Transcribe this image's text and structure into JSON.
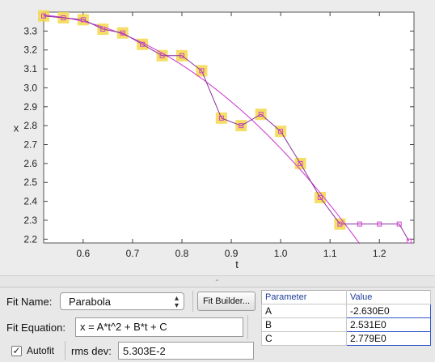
{
  "chart_data": {
    "type": "scatter",
    "xlabel": "t",
    "ylabel": "x",
    "xlim": [
      0.52,
      1.27
    ],
    "ylim": [
      2.18,
      3.4
    ],
    "x_ticks": [
      0.6,
      0.7,
      0.8,
      0.9,
      1.0,
      1.1,
      1.2
    ],
    "y_ticks": [
      2.2,
      2.3,
      2.4,
      2.5,
      2.6,
      2.7,
      2.8,
      2.9,
      3.0,
      3.1,
      3.2,
      3.3
    ],
    "grid": false,
    "series": [
      {
        "points": [
          {
            "t": 0.52,
            "x": 3.38,
            "highlighted": true
          },
          {
            "t": 0.56,
            "x": 3.37,
            "highlighted": true
          },
          {
            "t": 0.6,
            "x": 3.36,
            "highlighted": true
          },
          {
            "t": 0.64,
            "x": 3.31,
            "highlighted": true
          },
          {
            "t": 0.68,
            "x": 3.29,
            "highlighted": true
          },
          {
            "t": 0.72,
            "x": 3.23,
            "highlighted": true
          },
          {
            "t": 0.76,
            "x": 3.17,
            "highlighted": true
          },
          {
            "t": 0.8,
            "x": 3.17,
            "highlighted": true
          },
          {
            "t": 0.84,
            "x": 3.09,
            "highlighted": true
          },
          {
            "t": 0.88,
            "x": 2.84,
            "highlighted": true
          },
          {
            "t": 0.92,
            "x": 2.8,
            "highlighted": true
          },
          {
            "t": 0.96,
            "x": 2.86,
            "highlighted": true
          },
          {
            "t": 1.0,
            "x": 2.77,
            "highlighted": true
          },
          {
            "t": 1.04,
            "x": 2.6,
            "highlighted": true
          },
          {
            "t": 1.08,
            "x": 2.42,
            "highlighted": true
          },
          {
            "t": 1.12,
            "x": 2.28,
            "highlighted": true
          },
          {
            "t": 1.16,
            "x": 2.28,
            "highlighted": false
          },
          {
            "t": 1.2,
            "x": 2.28,
            "highlighted": false
          },
          {
            "t": 1.24,
            "x": 2.28,
            "highlighted": false
          },
          {
            "t": 1.26,
            "x": 2.19,
            "highlighted": false
          }
        ]
      }
    ],
    "fit": {
      "A": -2.63,
      "B": 2.531,
      "C": 2.779,
      "t_range": [
        0.52,
        1.16
      ]
    },
    "colors": {
      "data_line": "#8b2fa0",
      "marker": "#d040d0",
      "highlight": "#f3d84a",
      "fit_line": "#cc33cc"
    }
  },
  "fit_panel": {
    "fit_name_label": "Fit Name:",
    "fit_name_value": "Parabola",
    "fit_builder_label": "Fit Builder...",
    "fit_equation_label": "Fit Equation:",
    "fit_equation_value": "x = A*t^2 + B*t + C",
    "autofit_label": "Autofit",
    "autofit_checked": true,
    "rms_label": "rms dev:",
    "rms_value": "5.303E-2"
  },
  "parameters": {
    "headers": [
      "Parameter",
      "Value"
    ],
    "rows": [
      {
        "name": "A",
        "value": "-2.630E0"
      },
      {
        "name": "B",
        "value": "2.531E0"
      },
      {
        "name": "C",
        "value": "2.779E0"
      }
    ]
  }
}
